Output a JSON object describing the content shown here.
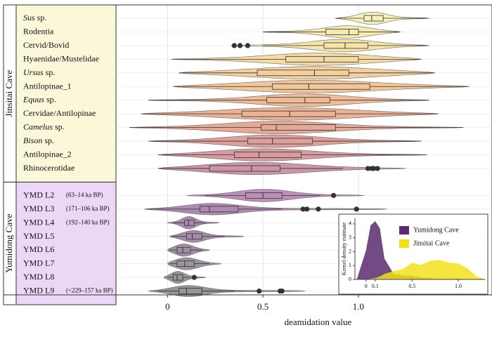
{
  "chart_data": [
    {
      "type": "violin",
      "xlabel": "deamidation value",
      "xlim": [
        -0.27,
        1.7
      ],
      "xticks": [
        0,
        0.5,
        {
          "value": 1,
          "label": "1.0"
        }
      ],
      "grid": true,
      "groups": [
        {
          "name": "Jinsitai Cave",
          "color": "#fbf8d9",
          "rows": [
            {
              "label": "Sus",
              "italic": true,
              "suffix": "sp.",
              "color": "#f6efb5",
              "range": [
                0.88,
                1.37
              ],
              "min": 0.88,
              "q1": 1.03,
              "median": 1.07,
              "q3": 1.13,
              "max": 1.37,
              "outliers": []
            },
            {
              "label": "Rodentia",
              "color": "#f5e8aa",
              "range": [
                0.5,
                1.22
              ],
              "min": 0.5,
              "q1": 0.83,
              "median": 0.95,
              "q3": 1.0,
              "max": 1.22,
              "outliers": []
            },
            {
              "label": "Cervid/Bovid",
              "color": "#f4e1a2",
              "range": [
                0.33,
                1.37
              ],
              "min": 0.5,
              "q1": 0.82,
              "median": 0.93,
              "q3": 1.05,
              "max": 1.37,
              "outliers": [
                0.35,
                0.38,
                0.42
              ]
            },
            {
              "label": "Hyaenidae/Mustelidae",
              "color": "#f3d69a",
              "range": [
                0.02,
                1.33
              ],
              "min": 0.02,
              "q1": 0.62,
              "median": 0.82,
              "q3": 1.0,
              "max": 1.33,
              "outliers": []
            },
            {
              "label": "Ursus",
              "italic": true,
              "suffix": "sp.",
              "color": "#f2cb94",
              "range": [
                0.06,
                1.4
              ],
              "min": 0.06,
              "q1": 0.47,
              "median": 0.77,
              "q3": 0.95,
              "max": 1.4,
              "outliers": []
            },
            {
              "label": "Antilopinae_1",
              "color": "#f0c08f",
              "range": [
                0.03,
                1.58
              ],
              "min": 0.03,
              "q1": 0.55,
              "median": 0.74,
              "q3": 1.06,
              "max": 1.58,
              "outliers": []
            },
            {
              "label": "Equus",
              "italic": true,
              "suffix": "sp.",
              "color": "#edb58c",
              "range": [
                -0.1,
                1.37
              ],
              "min": -0.1,
              "q1": 0.52,
              "median": 0.72,
              "q3": 0.85,
              "max": 1.37,
              "outliers": []
            },
            {
              "label": "Cervidae/Antilopinae",
              "color": "#e9aa8b",
              "range": [
                -0.14,
                1.42
              ],
              "min": -0.14,
              "q1": 0.39,
              "median": 0.64,
              "q3": 0.88,
              "max": 1.42,
              "outliers": []
            },
            {
              "label": "Camelus",
              "italic": true,
              "suffix": "sp.",
              "color": "#e2a08d",
              "range": [
                -0.2,
                1.55
              ],
              "min": -0.2,
              "q1": 0.49,
              "median": 0.57,
              "q3": 0.88,
              "max": 1.55,
              "outliers": []
            },
            {
              "label": "Bison",
              "italic": true,
              "suffix": "sp.",
              "color": "#da9690",
              "range": [
                -0.1,
                1.33
              ],
              "min": -0.1,
              "q1": 0.42,
              "median": 0.55,
              "q3": 0.76,
              "max": 1.33,
              "outliers": []
            },
            {
              "label": "Antilopinae_2",
              "color": "#d18f97",
              "range": [
                -0.05,
                1.36
              ],
              "min": -0.05,
              "q1": 0.35,
              "median": 0.48,
              "q3": 0.7,
              "max": 1.36,
              "outliers": []
            },
            {
              "label": "Rhinocerotidae",
              "color": "#c6899f",
              "range": [
                -0.05,
                1.25
              ],
              "min": -0.05,
              "q1": 0.22,
              "median": 0.44,
              "q3": 0.59,
              "max": 0.92,
              "outliers": [
                1.05,
                1.07,
                1.08,
                1.1
              ]
            }
          ]
        },
        {
          "name": "Yumidong Cave",
          "color": "#ead8f6",
          "rows": [
            {
              "label": "YMD L2",
              "note": "(63–14 ka BP)",
              "color": "#b483b0",
              "range": [
                0.1,
                1.03
              ],
              "min": 0.2,
              "q1": 0.41,
              "median": 0.5,
              "q3": 0.6,
              "max": 0.8,
              "outliers": [
                0.87
              ]
            },
            {
              "label": "YMD L3",
              "note": "(171–106 ka BP)",
              "color": "#a77da8",
              "range": [
                -0.12,
                1.15
              ],
              "min": -0.12,
              "q1": 0.17,
              "median": 0.22,
              "q3": 0.37,
              "max": 0.6,
              "outliers": [
                0.71,
                0.73,
                0.79,
                0.99
              ]
            },
            {
              "label": "YMD L4",
              "note": "(192–140 ka BP)",
              "color": "#9f7ea5",
              "range": [
                0,
                0.27
              ],
              "min": 0.03,
              "q1": 0.09,
              "median": 0.11,
              "q3": 0.14,
              "max": 0.2,
              "outliers": []
            },
            {
              "label": "YMD L5",
              "color": "#9a80a0",
              "range": [
                0.01,
                0.4
              ],
              "min": 0.02,
              "q1": 0.1,
              "median": 0.13,
              "q3": 0.18,
              "max": 0.3,
              "outliers": []
            },
            {
              "label": "YMD L6",
              "color": "#95849b",
              "range": [
                0,
                0.22
              ],
              "min": 0.01,
              "q1": 0.05,
              "median": 0.08,
              "q3": 0.12,
              "max": 0.18,
              "outliers": []
            },
            {
              "label": "YMD L7",
              "color": "#918895",
              "range": [
                0,
                0.28
              ],
              "min": 0.01,
              "q1": 0.05,
              "median": 0.09,
              "q3": 0.14,
              "max": 0.22,
              "outliers": []
            },
            {
              "label": "YMD L8",
              "color": "#8d8b90",
              "range": [
                -0.02,
                0.2
              ],
              "min": 0,
              "q1": 0.03,
              "median": 0.05,
              "q3": 0.08,
              "max": 0.12,
              "outliers": [
                0.14
              ]
            },
            {
              "label": "YMD L9",
              "note": "(<229–157 ka BP)",
              "color": "#8b8b8b",
              "range": [
                -0.1,
                0.72
              ],
              "min": -0.05,
              "q1": 0.06,
              "median": 0.1,
              "q3": 0.18,
              "max": 0.35,
              "outliers": [
                0.48,
                0.59,
                0.6
              ]
            }
          ]
        }
      ]
    },
    {
      "type": "area",
      "ylabel": "Kernel density estimate",
      "xlim": [
        -0.12,
        1.29
      ],
      "xticks": [
        0,
        0.1,
        0.5,
        {
          "value": 1,
          "label": "1.0"
        }
      ],
      "ylim": [
        0,
        4.4
      ],
      "yticks": [
        0,
        1,
        2,
        3,
        4
      ],
      "x": [
        -0.1,
        0,
        0.05,
        0.1,
        0.15,
        0.2,
        0.3,
        0.4,
        0.5,
        0.6,
        0.7,
        0.8,
        0.9,
        1.0,
        1.1,
        1.2,
        1.3
      ],
      "series": [
        {
          "name": "Yumidong Cave",
          "color": "#5b2c6f",
          "values": [
            0,
            2.1,
            3.9,
            4.2,
            3.7,
            1.5,
            0.4,
            0.3,
            0.25,
            0.15,
            0.1,
            0.05,
            0.05,
            0.08,
            0.02,
            0,
            0
          ]
        },
        {
          "name": "Jinsitai Cave",
          "color": "#f2e01e",
          "values": [
            0,
            0,
            0.05,
            0.1,
            0.2,
            0.4,
            0.6,
            0.75,
            1.2,
            1.05,
            1.35,
            1.4,
            1.2,
            1.15,
            0.8,
            0.2,
            0
          ]
        }
      ]
    }
  ]
}
